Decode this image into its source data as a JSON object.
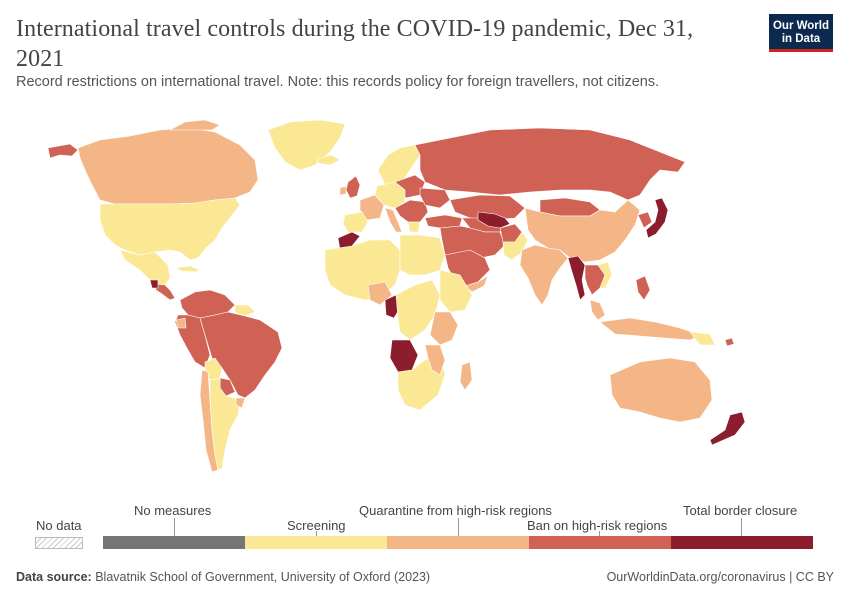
{
  "header": {
    "title": "International travel controls during the COVID-19 pandemic, Dec 31, 2021",
    "subtitle": "Record restrictions on international travel. Note: this records policy for foreign travellers, not citizens.",
    "logo_line1": "Our World",
    "logo_line2": "in Data"
  },
  "colors": {
    "no_measures": "#757575",
    "screening": "#fbe894",
    "quarantine": "#f4b686",
    "ban": "#cf6255",
    "closure": "#8c1d2c",
    "ocean_border": "#ffffff"
  },
  "legend": {
    "no_data": "No data",
    "categories": [
      {
        "label": "No measures",
        "color": "#757575"
      },
      {
        "label": "Screening",
        "color": "#fbe894"
      },
      {
        "label": "Quarantine from high-risk regions",
        "color": "#f4b686"
      },
      {
        "label": "Ban on high-risk regions",
        "color": "#cf6255"
      },
      {
        "label": "Total border closure",
        "color": "#8c1d2c"
      }
    ]
  },
  "footer": {
    "source_label": "Data source:",
    "source_text": "Blavatnik School of Government, University of Oxford (2023)",
    "url": "OurWorldinData.org/coronavirus",
    "license": "CC BY"
  }
}
